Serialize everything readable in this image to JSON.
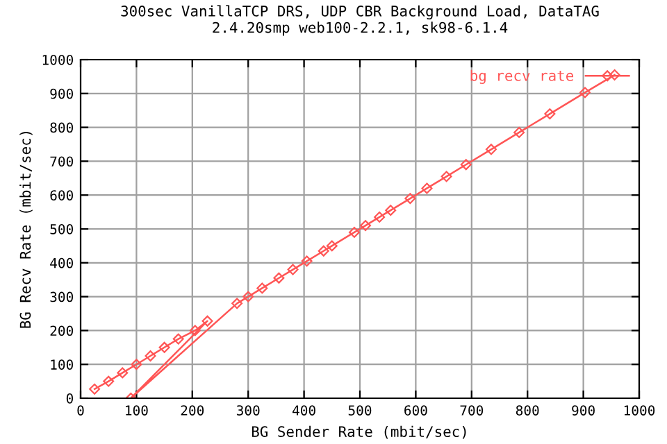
{
  "chart_data": {
    "type": "line",
    "title": "300sec VanillaTCP DRS, UDP CBR Background Load, DataTAG\n2.4.20smp web100-2.2.1, sk98-6.1.4",
    "xlabel": "BG Sender Rate (mbit/sec)",
    "ylabel": "BG Recv Rate (mbit/sec)",
    "series": [
      {
        "name": "bg recv rate",
        "color": "#ff5555",
        "x": [
          25,
          50,
          75,
          100,
          125,
          150,
          175,
          205,
          227,
          90,
          280,
          300,
          325,
          355,
          380,
          405,
          435,
          450,
          490,
          510,
          535,
          555,
          590,
          620,
          655,
          690,
          735,
          785,
          840,
          903,
          956
        ],
        "values": [
          27,
          50,
          75,
          100,
          125,
          150,
          175,
          200,
          228,
          0,
          280,
          300,
          325,
          355,
          380,
          405,
          435,
          450,
          490,
          510,
          535,
          555,
          590,
          620,
          655,
          690,
          735,
          785,
          840,
          903,
          955
        ]
      }
    ],
    "xlim": [
      0,
      1000
    ],
    "ylim": [
      0,
      1000
    ],
    "xticks": [
      0,
      100,
      200,
      300,
      400,
      500,
      600,
      700,
      800,
      900,
      1000
    ],
    "yticks": [
      0,
      100,
      200,
      300,
      400,
      500,
      600,
      700,
      800,
      900,
      1000
    ],
    "grid": true,
    "legend": "top right",
    "marker": "diamond",
    "line_style": "solid"
  }
}
